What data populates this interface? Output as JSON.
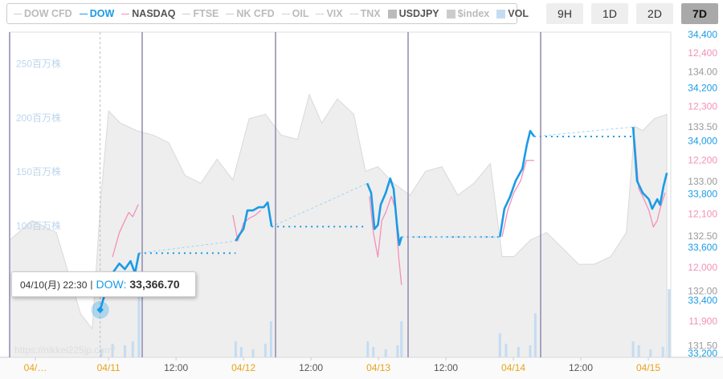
{
  "chart_data": {
    "type": "multi-axis",
    "legend_other": [
      "DOW CFD",
      "FTSE",
      "NK CFD",
      "OIL",
      "VIX",
      "TNX",
      "$index"
    ],
    "buttons": [
      "9H",
      "1D",
      "2D",
      "7D"
    ],
    "active_button": 3,
    "xlim": [
      6.4,
      124
    ],
    "xticks": [
      {
        "value": 0,
        "label": "04/…"
      },
      {
        "value": 24,
        "label": "04/11"
      },
      {
        "value": 36,
        "label": "12:00"
      },
      {
        "value": 48,
        "label": "04/12"
      },
      {
        "value": 60,
        "label": "12:00"
      },
      {
        "value": 72,
        "label": "04/13"
      },
      {
        "value": 84,
        "label": "12:00"
      },
      {
        "value": 96,
        "label": "04/14"
      },
      {
        "value": 108,
        "label": "12:00"
      },
      {
        "value": 120,
        "label": "04/15"
      }
    ],
    "watermark": "https://nikkei225jp.com/",
    "series": [
      {
        "name": "DOW",
        "type": "line",
        "color": "#1a9be6",
        "axis_side": "right",
        "ylim": [
          33188,
          34412
        ],
        "yticks": [
          {
            "value": 33200,
            "label": "33,200"
          },
          {
            "value": 33400,
            "label": "33,400"
          },
          {
            "value": 33600,
            "label": "33,600"
          },
          {
            "value": 33800,
            "label": "33,800"
          },
          {
            "value": 34000,
            "label": "34,000"
          },
          {
            "value": 34200,
            "label": "34,200"
          },
          {
            "value": 34400,
            "label": "34,400"
          }
        ],
        "x": [
          22.5,
          23.6,
          24.7,
          25.9,
          26.9,
          27.9,
          28.7,
          29.4,
          null,
          46.6,
          47.3,
          48,
          48.7,
          49.7,
          50.7,
          51.6,
          52.3,
          53,
          null,
          70,
          70.7,
          71.3,
          71.9,
          72.4,
          73.3,
          74.1,
          74.7,
          75.3,
          75.7,
          76.1,
          null,
          93.6,
          94.4,
          95.4,
          96.4,
          97.6,
          98.4,
          99,
          99.7,
          null,
          117.3,
          118,
          119,
          120.1,
          120.7,
          121.6,
          122.1,
          122.7,
          123.3
        ],
        "values": [
          33366.7,
          33445,
          33505,
          33541,
          33520,
          33550,
          33505,
          33580,
          null,
          33626,
          33650,
          33671,
          33741,
          33741,
          33753,
          33753,
          33771,
          33680,
          null,
          33843,
          33807,
          33671,
          33686,
          33762,
          33807,
          33861,
          33822,
          33686,
          33611,
          33641,
          null,
          33641,
          33747,
          33792,
          33852,
          33898,
          33988,
          34040,
          34019,
          null,
          34055,
          33852,
          33807,
          33783,
          33747,
          33783,
          33762,
          33831,
          33882
        ]
      },
      {
        "name": "NASDAQ",
        "type": "line",
        "color": "#f490b8",
        "axis_side": "right",
        "ylim": [
          11834,
          12440
        ],
        "yticks": [
          {
            "value": 11900,
            "label": "11,900"
          },
          {
            "value": 12000,
            "label": "12,000"
          },
          {
            "value": 12100,
            "label": "12,100"
          },
          {
            "value": 12200,
            "label": "12,200"
          },
          {
            "value": 12300,
            "label": "12,300"
          },
          {
            "value": 12400,
            "label": "12,400"
          }
        ],
        "x": [
          24.7,
          25.9,
          26.9,
          27.6,
          28.3,
          29.3,
          null,
          46.1,
          47,
          48,
          49,
          50.1,
          51.1,
          null,
          70.4,
          71.1,
          71.9,
          72.6,
          73.3,
          74.3,
          75,
          75.6,
          76.1,
          null,
          94,
          95,
          96.1,
          97.3,
          98.3,
          99,
          99.7,
          null,
          117.6,
          118.3,
          119,
          120.1,
          120.9,
          121.6,
          122.1,
          123
        ],
        "values": [
          12021,
          12066,
          12089,
          12104,
          12096,
          12119,
          null,
          12099,
          12051,
          12084,
          12093,
          12099,
          12108,
          null,
          12134,
          12066,
          12021,
          12089,
          12104,
          12134,
          12111,
          12021,
          11969,
          null,
          12059,
          12108,
          12141,
          12163,
          12201,
          12201,
          12201,
          null,
          12238,
          12148,
          12134,
          12108,
          12077,
          12089,
          12111,
          12141
        ]
      },
      {
        "name": "USDJPY",
        "type": "area",
        "color": "#9a9a9a",
        "axis_side": "right",
        "ylim": [
          131.4,
          134.37
        ],
        "yticks": [
          {
            "value": 131.5,
            "label": "131.50"
          },
          {
            "value": 132,
            "label": "132.00"
          },
          {
            "value": 132.5,
            "label": "132.50"
          },
          {
            "value": 133,
            "label": "133.00"
          },
          {
            "value": 133.5,
            "label": "133.50"
          },
          {
            "value": 134,
            "label": "134.00"
          }
        ],
        "x": [
          6.4,
          10.4,
          14.7,
          19,
          21.1,
          22.6,
          24,
          26.1,
          29,
          31.9,
          34.7,
          37.6,
          40.4,
          43.3,
          46.1,
          49,
          51.9,
          54.7,
          57.6,
          59.7,
          61.9,
          64.7,
          67.6,
          69.7,
          71.9,
          74.7,
          77.6,
          80.4,
          83.3,
          86.1,
          89,
          91.9,
          94,
          96.1,
          99,
          101.9,
          104.7,
          107.6,
          110.4,
          113.3,
          116.1,
          117.6,
          119,
          121.1,
          123.3
        ],
        "values": [
          132.47,
          132.65,
          132.54,
          131.8,
          131.66,
          132.84,
          133.65,
          133.54,
          133.47,
          133.43,
          133.36,
          133.06,
          132.99,
          133.21,
          133.02,
          133.58,
          133.62,
          133.43,
          133.39,
          133.8,
          133.54,
          133.76,
          133.62,
          133.1,
          133.14,
          132.99,
          132.88,
          133.1,
          133.14,
          132.88,
          132.99,
          133.17,
          132.32,
          132.32,
          132.47,
          132.54,
          132.4,
          132.25,
          132.25,
          132.32,
          132.54,
          133.51,
          133.47,
          133.58,
          133.62
        ]
      },
      {
        "name": "VOL",
        "type": "bar",
        "color": "#c4dcf2",
        "axis_side": "left",
        "ylim": [
          -21,
          280
        ],
        "yticks": [
          {
            "value": 100,
            "label": "100百万株"
          },
          {
            "value": 150,
            "label": "150百万株"
          },
          {
            "value": 200,
            "label": "200百万株"
          },
          {
            "value": 250,
            "label": "250百万株"
          }
        ],
        "x": [
          22.7,
          24.7,
          26.9,
          28.3,
          29.4,
          46.6,
          47.6,
          49.7,
          51.9,
          52.9,
          70.1,
          71.1,
          73.3,
          75.4,
          76.1,
          93.6,
          94.7,
          96.9,
          99,
          99.9,
          117.3,
          118.3,
          120.4,
          122.6,
          123.7
        ],
        "values": [
          -13.6,
          -8.4,
          -9.9,
          -6.2,
          53.2,
          -6.2,
          -11.4,
          -13.6,
          -8.4,
          12.4,
          -6.2,
          -11.4,
          -13.6,
          -9.9,
          12.4,
          1.2,
          -8.4,
          -11.4,
          -9.9,
          19.8,
          -6.2,
          -9.9,
          -13.6,
          -11.4,
          42.1
        ]
      }
    ],
    "tooltip": {
      "time": "04/10(月) 22:30",
      "separator": "|",
      "label": "DOW:",
      "value": 33366.7,
      "value_label": "33,366.70"
    }
  }
}
